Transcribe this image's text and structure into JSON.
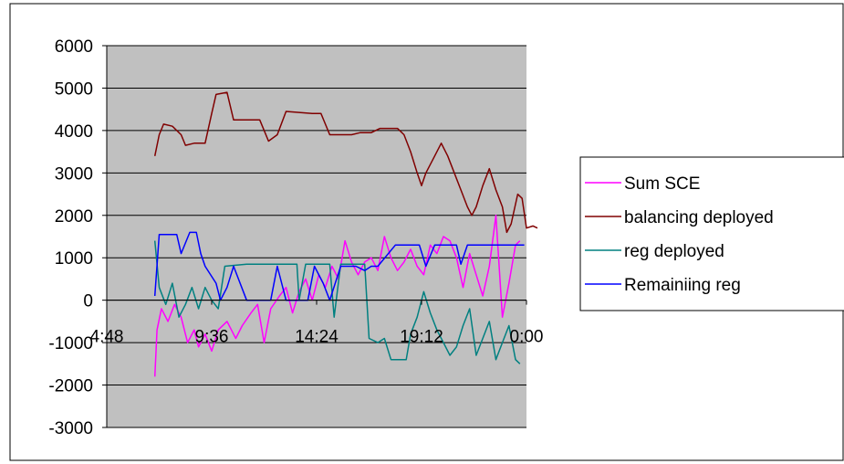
{
  "chart_data": {
    "type": "line",
    "title": "",
    "xlabel": "",
    "ylabel": "",
    "ylim": [
      -3000,
      6000
    ],
    "yticks": [
      6000,
      5000,
      4000,
      3000,
      2000,
      1000,
      0,
      -1000,
      -2000,
      -3000
    ],
    "y_tick_labels": [
      "6000",
      "5000",
      "4000",
      "3000",
      "2000",
      "1000",
      "0",
      "-1000",
      "-2000",
      "-3000"
    ],
    "xlim_hours": [
      4.8,
      24.0
    ],
    "x_tick_labels": [
      "4:48",
      "9:36",
      "14:24",
      "19:12",
      "0:00"
    ],
    "x_ticks_hours": [
      4.8,
      9.6,
      14.4,
      19.2,
      24.0
    ],
    "grid": "horizontal",
    "plot_background": "#c0c0c0",
    "legend_position": "right",
    "series": [
      {
        "name": "Sum SCE",
        "color": "#ff00ff",
        "points": [
          [
            7.0,
            -1800
          ],
          [
            7.1,
            -700
          ],
          [
            7.3,
            -200
          ],
          [
            7.6,
            -500
          ],
          [
            7.9,
            -100
          ],
          [
            8.2,
            -400
          ],
          [
            8.5,
            -1000
          ],
          [
            8.8,
            -700
          ],
          [
            9.0,
            -1100
          ],
          [
            9.3,
            -800
          ],
          [
            9.6,
            -1200
          ],
          [
            9.9,
            -700
          ],
          [
            10.3,
            -500
          ],
          [
            10.7,
            -900
          ],
          [
            11.0,
            -600
          ],
          [
            11.4,
            -300
          ],
          [
            11.7,
            -100
          ],
          [
            12.0,
            -1000
          ],
          [
            12.3,
            -200
          ],
          [
            12.7,
            100
          ],
          [
            13.0,
            300
          ],
          [
            13.3,
            -300
          ],
          [
            13.6,
            200
          ],
          [
            13.9,
            500
          ],
          [
            14.2,
            0
          ],
          [
            14.5,
            600
          ],
          [
            14.8,
            300
          ],
          [
            15.1,
            800
          ],
          [
            15.4,
            500
          ],
          [
            15.7,
            1400
          ],
          [
            16.0,
            900
          ],
          [
            16.3,
            600
          ],
          [
            16.6,
            900
          ],
          [
            16.9,
            1000
          ],
          [
            17.2,
            700
          ],
          [
            17.5,
            1500
          ],
          [
            17.8,
            1000
          ],
          [
            18.1,
            700
          ],
          [
            18.4,
            900
          ],
          [
            18.7,
            1200
          ],
          [
            19.0,
            800
          ],
          [
            19.3,
            600
          ],
          [
            19.6,
            1300
          ],
          [
            19.9,
            1100
          ],
          [
            20.2,
            1500
          ],
          [
            20.5,
            1400
          ],
          [
            20.8,
            1000
          ],
          [
            21.1,
            300
          ],
          [
            21.4,
            1100
          ],
          [
            21.7,
            600
          ],
          [
            22.0,
            100
          ],
          [
            22.3,
            800
          ],
          [
            22.6,
            2000
          ],
          [
            22.9,
            -400
          ],
          [
            23.2,
            400
          ],
          [
            23.5,
            1300
          ],
          [
            23.7,
            1400
          ]
        ]
      },
      {
        "name": "balancing deployed",
        "color": "#800000",
        "points": [
          [
            7.0,
            3400
          ],
          [
            7.2,
            3900
          ],
          [
            7.4,
            4150
          ],
          [
            7.8,
            4100
          ],
          [
            8.2,
            3900
          ],
          [
            8.4,
            3650
          ],
          [
            8.8,
            3700
          ],
          [
            9.3,
            3700
          ],
          [
            9.6,
            4400
          ],
          [
            9.8,
            4850
          ],
          [
            10.3,
            4900
          ],
          [
            10.6,
            4250
          ],
          [
            11.8,
            4250
          ],
          [
            12.2,
            3750
          ],
          [
            12.6,
            3900
          ],
          [
            13.0,
            4450
          ],
          [
            14.2,
            4400
          ],
          [
            14.6,
            4400
          ],
          [
            15.0,
            3900
          ],
          [
            16.0,
            3900
          ],
          [
            16.4,
            3950
          ],
          [
            16.9,
            3950
          ],
          [
            17.3,
            4050
          ],
          [
            18.1,
            4050
          ],
          [
            18.4,
            3900
          ],
          [
            18.7,
            3500
          ],
          [
            19.0,
            3000
          ],
          [
            19.2,
            2700
          ],
          [
            19.4,
            3000
          ],
          [
            19.8,
            3400
          ],
          [
            20.1,
            3700
          ],
          [
            20.4,
            3400
          ],
          [
            20.7,
            3000
          ],
          [
            21.0,
            2600
          ],
          [
            21.3,
            2200
          ],
          [
            21.5,
            2000
          ],
          [
            21.7,
            2200
          ],
          [
            22.0,
            2700
          ],
          [
            22.3,
            3100
          ],
          [
            22.6,
            2600
          ],
          [
            22.9,
            2200
          ],
          [
            23.1,
            1600
          ],
          [
            23.3,
            1800
          ],
          [
            23.6,
            2500
          ],
          [
            23.8,
            2400
          ],
          [
            24.0,
            1700
          ],
          [
            24.3,
            1750
          ],
          [
            24.5,
            1700
          ]
        ]
      },
      {
        "name": "reg deployed",
        "color": "#008080",
        "points": [
          [
            7.0,
            1400
          ],
          [
            7.2,
            300
          ],
          [
            7.5,
            -100
          ],
          [
            7.8,
            400
          ],
          [
            8.1,
            -400
          ],
          [
            8.4,
            -100
          ],
          [
            8.7,
            300
          ],
          [
            9.0,
            -200
          ],
          [
            9.3,
            300
          ],
          [
            9.6,
            0
          ],
          [
            9.9,
            -200
          ],
          [
            10.2,
            800
          ],
          [
            11.2,
            850
          ],
          [
            13.5,
            850
          ],
          [
            13.6,
            0
          ],
          [
            13.9,
            850
          ],
          [
            15.0,
            850
          ],
          [
            15.2,
            -400
          ],
          [
            15.5,
            850
          ],
          [
            16.6,
            850
          ],
          [
            16.8,
            -900
          ],
          [
            17.2,
            -1000
          ],
          [
            17.5,
            -900
          ],
          [
            17.8,
            -1400
          ],
          [
            18.5,
            -1400
          ],
          [
            18.7,
            -800
          ],
          [
            19.0,
            -400
          ],
          [
            19.3,
            200
          ],
          [
            19.6,
            -300
          ],
          [
            19.9,
            -700
          ],
          [
            20.2,
            -1000
          ],
          [
            20.5,
            -1300
          ],
          [
            20.8,
            -1100
          ],
          [
            21.1,
            -600
          ],
          [
            21.4,
            -200
          ],
          [
            21.7,
            -1300
          ],
          [
            22.0,
            -900
          ],
          [
            22.3,
            -500
          ],
          [
            22.6,
            -1400
          ],
          [
            22.9,
            -1000
          ],
          [
            23.2,
            -600
          ],
          [
            23.5,
            -1400
          ],
          [
            23.7,
            -1500
          ]
        ]
      },
      {
        "name": "Remainiing reg",
        "color": "#0000ff",
        "points": [
          [
            7.0,
            100
          ],
          [
            7.2,
            1550
          ],
          [
            8.0,
            1550
          ],
          [
            8.2,
            1100
          ],
          [
            8.6,
            1600
          ],
          [
            8.9,
            1600
          ],
          [
            9.1,
            1100
          ],
          [
            9.3,
            800
          ],
          [
            9.8,
            400
          ],
          [
            10.0,
            0
          ],
          [
            10.3,
            300
          ],
          [
            10.6,
            800
          ],
          [
            11.2,
            0
          ],
          [
            12.3,
            0
          ],
          [
            12.6,
            800
          ],
          [
            13.0,
            0
          ],
          [
            14.0,
            0
          ],
          [
            14.3,
            800
          ],
          [
            14.7,
            400
          ],
          [
            15.0,
            0
          ],
          [
            15.5,
            800
          ],
          [
            16.2,
            800
          ],
          [
            16.6,
            700
          ],
          [
            16.9,
            800
          ],
          [
            17.2,
            800
          ],
          [
            18.0,
            1300
          ],
          [
            19.1,
            1300
          ],
          [
            19.4,
            800
          ],
          [
            19.8,
            1300
          ],
          [
            20.8,
            1300
          ],
          [
            21.0,
            850
          ],
          [
            21.3,
            1300
          ],
          [
            23.9,
            1300
          ]
        ]
      }
    ]
  }
}
